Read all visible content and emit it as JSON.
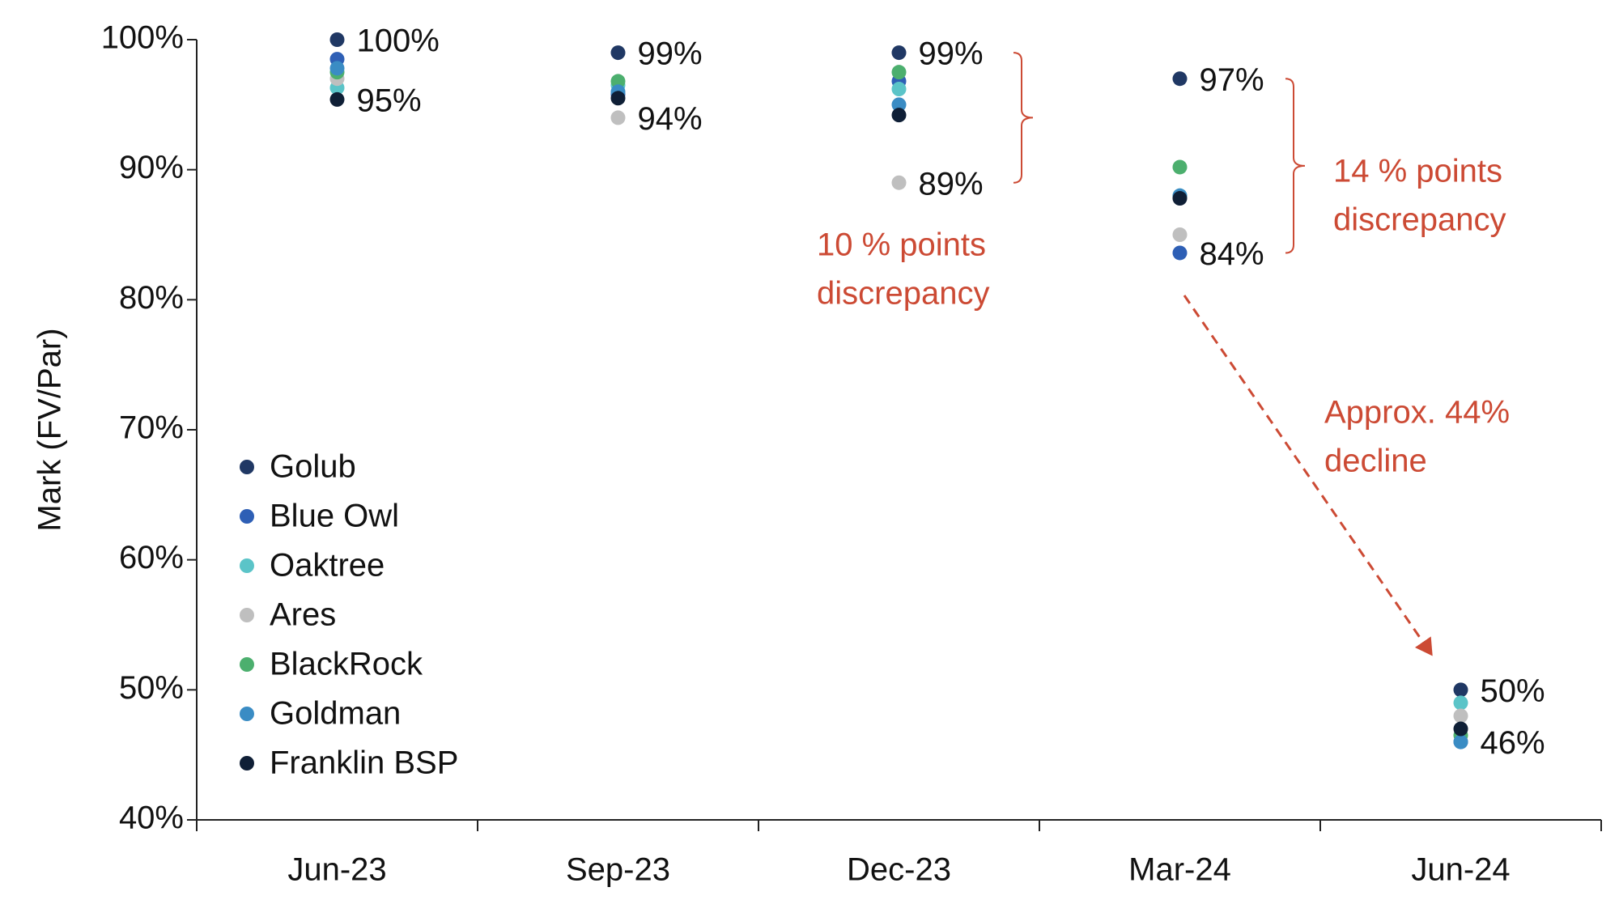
{
  "chart_data": {
    "type": "dot",
    "y_label": "Mark (FV/Par)",
    "categories": [
      "Jun-23",
      "Sep-23",
      "Dec-23",
      "Mar-24",
      "Jun-24"
    ],
    "series": [
      {
        "name": "Golub",
        "color": "#203864",
        "values": [
          100,
          99,
          99,
          97,
          50
        ],
        "value_labels": [
          "100%",
          "99%",
          "99%",
          "97%",
          "50%"
        ]
      },
      {
        "name": "Blue Owl",
        "color": "#2e5fb5",
        "values": [
          98.5,
          95.8,
          96.8,
          83.6,
          46
        ],
        "value_labels": [
          null,
          null,
          null,
          "84%",
          null
        ]
      },
      {
        "name": "Oaktree",
        "color": "#5bc4c8",
        "values": [
          96.3,
          96.5,
          96.2,
          88,
          49
        ]
      },
      {
        "name": "Ares",
        "color": "#bfbfbf",
        "values": [
          97,
          94,
          89,
          85,
          48
        ],
        "value_labels": [
          null,
          "94%",
          "89%",
          null,
          null
        ]
      },
      {
        "name": "BlackRock",
        "color": "#4caf6e",
        "values": [
          97.5,
          96.8,
          97.5,
          90.2,
          46.5
        ]
      },
      {
        "name": "Goldman",
        "color": "#3a8cc4",
        "values": [
          97.8,
          96,
          95,
          88,
          46
        ],
        "value_labels": [
          null,
          null,
          null,
          null,
          "46%"
        ]
      },
      {
        "name": "Franklin BSP",
        "color": "#0f1f36",
        "values": [
          95.4,
          95.5,
          94.2,
          87.8,
          47
        ],
        "value_labels": [
          "95%",
          null,
          null,
          null,
          null
        ]
      }
    ],
    "ylim": [
      40,
      100
    ],
    "yticks": [
      {
        "value": 40,
        "label": "40%"
      },
      {
        "value": 50,
        "label": "50%"
      },
      {
        "value": 60,
        "label": "60%"
      },
      {
        "value": 70,
        "label": "70%"
      },
      {
        "value": 80,
        "label": "80%"
      },
      {
        "value": 90,
        "label": "90%"
      },
      {
        "value": 100,
        "label": "100%"
      }
    ],
    "legend": "lower-left",
    "annotations": [
      {
        "lines": [
          "10 % points",
          "discrepancy"
        ],
        "color": "#cc4a34"
      },
      {
        "lines": [
          "14 % points",
          "discrepancy"
        ],
        "color": "#cc4a34"
      },
      {
        "lines": [
          "Approx. 44%",
          "decline"
        ],
        "color": "#cc4a34"
      }
    ]
  }
}
